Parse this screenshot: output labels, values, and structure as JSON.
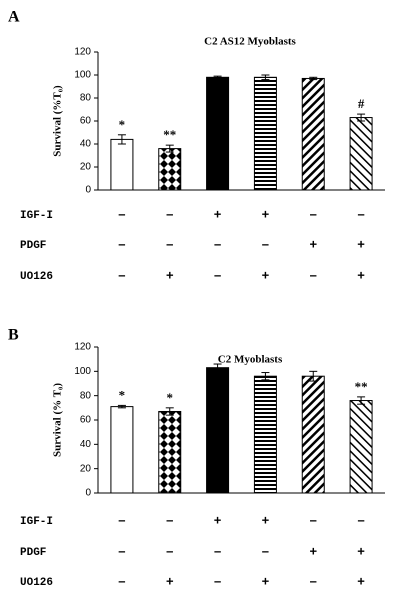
{
  "chart_data": [
    {
      "type": "bar",
      "panel": "A",
      "title": "C2 AS12 Myoblasts",
      "y_label": "Survival (%T₀)",
      "values": [
        44,
        36,
        98,
        98,
        97,
        63
      ],
      "errors": [
        4,
        3,
        1,
        2,
        1,
        3
      ],
      "annotations": [
        "*",
        "**",
        null,
        null,
        null,
        "#"
      ],
      "patterns": [
        "empty",
        "checker",
        "solid",
        "horizontal",
        "diagonal-left",
        "diagonal-right"
      ],
      "color": "#000000",
      "ylim": [
        0,
        120
      ],
      "yticks": [
        0,
        20,
        40,
        60,
        80,
        100,
        120
      ],
      "treatments": [
        {
          "name": "IGF-I",
          "signs": [
            "–",
            "–",
            "+",
            "+",
            "–",
            "–"
          ]
        },
        {
          "name": "PDGF",
          "signs": [
            "–",
            "–",
            "–",
            "–",
            "+",
            "+"
          ]
        },
        {
          "name": "UO126",
          "signs": [
            "–",
            "+",
            "–",
            "+",
            "–",
            "+"
          ]
        }
      ]
    },
    {
      "type": "bar",
      "panel": "B",
      "title": "C2 Myoblasts",
      "y_label": "Survival (% T₀)",
      "values": [
        71,
        67,
        103,
        96,
        96,
        76
      ],
      "errors": [
        1,
        3,
        3,
        3,
        4,
        3
      ],
      "annotations": [
        "*",
        "*",
        null,
        null,
        null,
        "**"
      ],
      "patterns": [
        "empty",
        "checker",
        "solid",
        "horizontal",
        "diagonal-left",
        "diagonal-right"
      ],
      "color": "#000000",
      "ylim": [
        0,
        120
      ],
      "yticks": [
        0,
        20,
        40,
        60,
        80,
        100,
        120
      ],
      "treatments": [
        {
          "name": "IGF-I",
          "signs": [
            "–",
            "–",
            "+",
            "+",
            "–",
            "–"
          ]
        },
        {
          "name": "PDGF",
          "signs": [
            "–",
            "–",
            "–",
            "–",
            "+",
            "+"
          ]
        },
        {
          "name": "UO126",
          "signs": [
            "–",
            "+",
            "–",
            "+",
            "–",
            "+"
          ]
        }
      ]
    }
  ]
}
